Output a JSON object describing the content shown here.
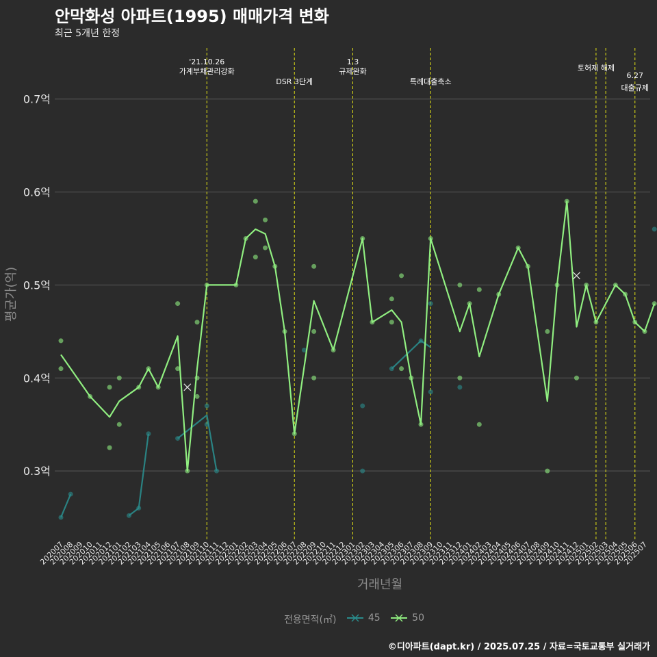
{
  "title": "안막화성 아파트(1995) 매매가격 변화",
  "subtitle": "최근 5개년 한정",
  "caption": "©디아파트(dapt.kr) / 2025.07.25 / 자료=국토교통부 실거래가",
  "colors": {
    "background": "#2b2b2b",
    "grid": "#5a5a5a",
    "series_45": "#2a8c8c",
    "series_50": "#90ee80",
    "event_line": "#e6e614"
  },
  "chart_data": {
    "type": "line",
    "title": "안막화성 아파트(1995) 매매가격 변화",
    "subtitle": "최근 5개년 한정",
    "xlabel": "거래년월",
    "ylabel": "평균가(억)",
    "ylim": [
      0.225,
      0.755
    ],
    "yticks": [
      0.3,
      0.4,
      0.5,
      0.6,
      0.7
    ],
    "ytick_labels": [
      "0.3억",
      "0.4억",
      "0.5억",
      "0.6억",
      "0.7억"
    ],
    "categories": [
      "202007",
      "202008",
      "202009",
      "202010",
      "202011",
      "202012",
      "202101",
      "202102",
      "202103",
      "202104",
      "202105",
      "202106",
      "202107",
      "202108",
      "202109",
      "202110",
      "202111",
      "202112",
      "202201",
      "202202",
      "202203",
      "202204",
      "202205",
      "202206",
      "202207",
      "202208",
      "202209",
      "202210",
      "202211",
      "202212",
      "202301",
      "202302",
      "202303",
      "202304",
      "202305",
      "202306",
      "202307",
      "202308",
      "202309",
      "202310",
      "202311",
      "202312",
      "202401",
      "202402",
      "202403",
      "202404",
      "202405",
      "202406",
      "202407",
      "202408",
      "202409",
      "202410",
      "202411",
      "202412",
      "202501",
      "202502",
      "202503",
      "202504",
      "202505",
      "202506",
      "202507"
    ],
    "legend_title": "전용면적(㎡)",
    "series": [
      {
        "name": "45",
        "color": "#2a8c8c",
        "line": [
          [
            [
              0,
              0.25
            ],
            [
              1,
              0.275
            ]
          ],
          [
            [
              7,
              0.252
            ],
            [
              8,
              0.26
            ],
            [
              9,
              0.34
            ]
          ],
          [
            [
              12,
              0.335
            ],
            [
              15,
              0.36
            ],
            [
              16,
              0.3
            ]
          ],
          [
            [
              34,
              0.41
            ],
            [
              37,
              0.44
            ],
            [
              38,
              0.433
            ]
          ]
        ],
        "points": [
          [
            0,
            0.25
          ],
          [
            1,
            0.275
          ],
          [
            7,
            0.252
          ],
          [
            8,
            0.26
          ],
          [
            9,
            0.34
          ],
          [
            12,
            0.335
          ],
          [
            15,
            0.37
          ],
          [
            15,
            0.35
          ],
          [
            16,
            0.3
          ],
          [
            25,
            0.43
          ],
          [
            31,
            0.37
          ],
          [
            31,
            0.3
          ],
          [
            34,
            0.41
          ],
          [
            37,
            0.44
          ],
          [
            38,
            0.48
          ],
          [
            38,
            0.385
          ],
          [
            41,
            0.39
          ],
          [
            61,
            0.56
          ]
        ]
      },
      {
        "name": "50",
        "color": "#90ee80",
        "line": [
          [
            [
              0,
              0.425
            ],
            [
              3,
              0.38
            ],
            [
              5,
              0.358
            ],
            [
              6,
              0.375
            ],
            [
              8,
              0.39
            ],
            [
              9,
              0.41
            ],
            [
              10,
              0.39
            ],
            [
              12,
              0.445
            ],
            [
              13,
              0.3
            ],
            [
              14,
              0.41
            ],
            [
              15,
              0.5
            ],
            [
              18,
              0.5
            ],
            [
              19,
              0.55
            ],
            [
              20,
              0.56
            ],
            [
              21,
              0.555
            ],
            [
              22,
              0.52
            ],
            [
              23,
              0.45
            ],
            [
              24,
              0.34
            ],
            [
              26,
              0.483
            ],
            [
              28,
              0.43
            ],
            [
              31,
              0.55
            ],
            [
              32,
              0.46
            ],
            [
              34,
              0.473
            ],
            [
              35,
              0.46
            ],
            [
              36,
              0.4
            ],
            [
              37,
              0.35
            ],
            [
              38,
              0.55
            ],
            [
              41,
              0.45
            ],
            [
              42,
              0.48
            ],
            [
              43,
              0.423
            ],
            [
              45,
              0.49
            ],
            [
              47,
              0.54
            ],
            [
              48,
              0.52
            ],
            [
              50,
              0.375
            ],
            [
              51,
              0.5
            ],
            [
              52,
              0.59
            ],
            [
              53,
              0.455
            ],
            [
              54,
              0.5
            ],
            [
              55,
              0.46
            ],
            [
              57,
              0.5
            ],
            [
              58,
              0.49
            ],
            [
              59,
              0.46
            ],
            [
              60,
              0.45
            ],
            [
              61,
              0.48
            ]
          ]
        ],
        "points": [
          [
            0,
            0.44
          ],
          [
            0,
            0.41
          ],
          [
            3,
            0.38
          ],
          [
            5,
            0.39
          ],
          [
            5,
            0.325
          ],
          [
            6,
            0.4
          ],
          [
            6,
            0.35
          ],
          [
            8,
            0.39
          ],
          [
            9,
            0.41
          ],
          [
            10,
            0.39
          ],
          [
            12,
            0.48
          ],
          [
            12,
            0.41
          ],
          [
            13,
            0.3
          ],
          [
            14,
            0.46
          ],
          [
            14,
            0.4
          ],
          [
            14,
            0.38
          ],
          [
            15,
            0.5
          ],
          [
            18,
            0.5
          ],
          [
            19,
            0.55
          ],
          [
            20,
            0.59
          ],
          [
            20,
            0.53
          ],
          [
            21,
            0.57
          ],
          [
            21,
            0.54
          ],
          [
            22,
            0.52
          ],
          [
            23,
            0.45
          ],
          [
            24,
            0.34
          ],
          [
            26,
            0.52
          ],
          [
            26,
            0.45
          ],
          [
            26,
            0.4
          ],
          [
            28,
            0.43
          ],
          [
            31,
            0.55
          ],
          [
            32,
            0.46
          ],
          [
            34,
            0.485
          ],
          [
            34,
            0.46
          ],
          [
            35,
            0.51
          ],
          [
            35,
            0.41
          ],
          [
            36,
            0.4
          ],
          [
            37,
            0.35
          ],
          [
            38,
            0.55
          ],
          [
            41,
            0.5
          ],
          [
            41,
            0.4
          ],
          [
            42,
            0.48
          ],
          [
            43,
            0.495
          ],
          [
            43,
            0.35
          ],
          [
            45,
            0.49
          ],
          [
            47,
            0.54
          ],
          [
            48,
            0.52
          ],
          [
            50,
            0.45
          ],
          [
            50,
            0.3
          ],
          [
            51,
            0.5
          ],
          [
            52,
            0.59
          ],
          [
            53,
            0.4
          ],
          [
            54,
            0.5
          ],
          [
            55,
            0.46
          ],
          [
            57,
            0.5
          ],
          [
            58,
            0.49
          ],
          [
            59,
            0.46
          ],
          [
            60,
            0.45
          ],
          [
            61,
            0.48
          ]
        ]
      }
    ],
    "cross_markers": [
      {
        "series": "50",
        "x": 13,
        "y": 0.39
      },
      {
        "series": "50",
        "x": 53,
        "y": 0.51
      }
    ],
    "events": [
      {
        "x": 15,
        "lines": [
          "'21.10.26",
          "가계부채관리강화"
        ],
        "level": 0
      },
      {
        "x": 24,
        "lines": [
          "DSR 3단계"
        ],
        "level": 2
      },
      {
        "x": 30,
        "lines": [
          "1.3",
          "규제완화"
        ],
        "level": 0
      },
      {
        "x": 38,
        "lines": [
          "특례대출축소"
        ],
        "level": 2
      },
      {
        "x": 55,
        "lines": [
          "토허제 해제"
        ],
        "level": 1
      },
      {
        "x": 56,
        "lines": [],
        "level": 1
      },
      {
        "x": 59,
        "lines": [
          "6.27",
          "대출규제"
        ],
        "level": 3
      }
    ],
    "grid": true,
    "legend_position": "bottom"
  }
}
